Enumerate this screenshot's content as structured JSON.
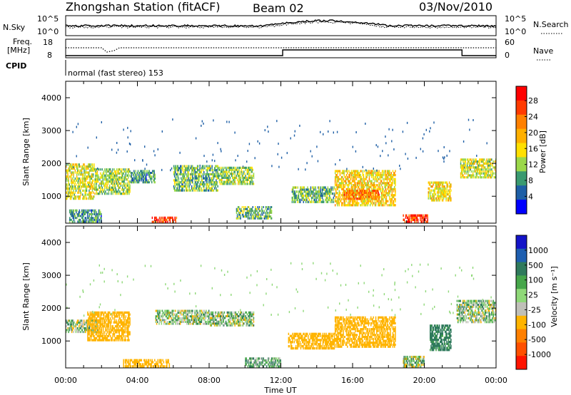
{
  "header": {
    "station": "Zhongshan Station (fitACF)",
    "beam": "Beam 02",
    "date": "03/Nov/2010"
  },
  "top_panels": {
    "nsky": {
      "label": "N.Sky",
      "yticks_left": [
        "10^5",
        "10^0"
      ],
      "yticks_right": [
        "10^5",
        "10^0"
      ],
      "right_label": "N.Search"
    },
    "freq": {
      "label_line1": "Freq.",
      "label_line2": "[MHz]",
      "yticks_left": [
        "18",
        "8"
      ],
      "yticks_right": [
        "60",
        "0"
      ],
      "right_label": "Nave"
    },
    "cpid": {
      "label": "CPID",
      "value_text": "normal (fast stereo) 153"
    }
  },
  "colorbars": {
    "power": {
      "label": "Power [dB]",
      "ticks": [
        "28",
        "24",
        "20",
        "16",
        "12",
        "8",
        "4"
      ],
      "colors": [
        "#ff0000",
        "#ff3a00",
        "#ff8000",
        "#ffb000",
        "#ffe000",
        "#9bd84a",
        "#3a9a70",
        "#1e5fa6",
        "#0000ff"
      ]
    },
    "velocity": {
      "label": "Velocity [m s⁻¹]",
      "ticks": [
        "1000",
        "500",
        "100",
        "25",
        "-25",
        "-100",
        "-500",
        "-1000"
      ],
      "colors": [
        "#1414c8",
        "#1e5fb0",
        "#2f7a5c",
        "#46a64a",
        "#8fd878",
        "#c0c0b8",
        "#ffb400",
        "#ff8000",
        "#ff5000",
        "#ff1400"
      ]
    }
  },
  "axes": {
    "ylabel": "Slant Range [km]",
    "xlabel": "Time UT",
    "y_ticks": [
      "4000",
      "3000",
      "2000",
      "1000"
    ],
    "x_ticks": [
      "00:00",
      "04:00",
      "08:00",
      "12:00",
      "16:00",
      "20:00",
      "00:00"
    ]
  },
  "chart_data": [
    {
      "type": "heatmap",
      "title": "Power",
      "ylabel": "Slant Range [km]",
      "xlabel": "Time UT",
      "xlim": [
        "00:00",
        "24:00"
      ],
      "ylim": [
        180,
        4500
      ],
      "value_range": [
        0,
        30
      ],
      "units": "dB",
      "regions": [
        {
          "t0": 0.0,
          "t1": 1.6,
          "r0": 900,
          "r1": 2000,
          "val": 14
        },
        {
          "t0": 1.6,
          "t1": 3.6,
          "r0": 1050,
          "r1": 1850,
          "val": 12
        },
        {
          "t0": 3.6,
          "t1": 5.0,
          "r0": 1400,
          "r1": 1800,
          "val": 8
        },
        {
          "t0": 0.2,
          "t1": 2.0,
          "r0": 200,
          "r1": 600,
          "val": 8
        },
        {
          "t0": 4.8,
          "t1": 6.2,
          "r0": 190,
          "r1": 380,
          "val": 26
        },
        {
          "t0": 6.0,
          "t1": 8.5,
          "r0": 1150,
          "r1": 1950,
          "val": 10
        },
        {
          "t0": 8.5,
          "t1": 10.5,
          "r0": 1350,
          "r1": 1900,
          "val": 12
        },
        {
          "t0": 9.5,
          "t1": 11.5,
          "r0": 300,
          "r1": 700,
          "val": 10
        },
        {
          "t0": 12.6,
          "t1": 15.0,
          "r0": 800,
          "r1": 1300,
          "val": 10
        },
        {
          "t0": 15.0,
          "t1": 18.4,
          "r0": 700,
          "r1": 1800,
          "val": 16
        },
        {
          "t0": 15.5,
          "t1": 17.5,
          "r0": 900,
          "r1": 1200,
          "val": 22
        },
        {
          "t0": 18.8,
          "t1": 20.2,
          "r0": 190,
          "r1": 450,
          "val": 26
        },
        {
          "t0": 20.2,
          "t1": 21.5,
          "r0": 850,
          "r1": 1450,
          "val": 16
        },
        {
          "t0": 22.0,
          "t1": 24.0,
          "r0": 1550,
          "r1": 2150,
          "val": 14
        }
      ]
    },
    {
      "type": "heatmap",
      "title": "Velocity",
      "ylabel": "Slant Range [km]",
      "xlabel": "Time UT",
      "xlim": [
        "00:00",
        "24:00"
      ],
      "ylim": [
        180,
        4500
      ],
      "value_range": [
        -1000,
        1000
      ],
      "units": "m s^-1",
      "regions": [
        {
          "t0": 0.0,
          "t1": 1.8,
          "r0": 1250,
          "r1": 1650,
          "val": 0
        },
        {
          "t0": 1.2,
          "t1": 3.6,
          "r0": 1000,
          "r1": 1900,
          "val": -300
        },
        {
          "t0": 3.2,
          "t1": 5.8,
          "r0": 200,
          "r1": 450,
          "val": -300
        },
        {
          "t0": 5.0,
          "t1": 8.0,
          "r0": 1500,
          "r1": 1950,
          "val": 0
        },
        {
          "t0": 8.0,
          "t1": 10.5,
          "r0": 1450,
          "r1": 1900,
          "val": 0
        },
        {
          "t0": 10.0,
          "t1": 12.0,
          "r0": 200,
          "r1": 500,
          "val": 60
        },
        {
          "t0": 12.4,
          "t1": 15.0,
          "r0": 750,
          "r1": 1250,
          "val": -300
        },
        {
          "t0": 15.0,
          "t1": 18.4,
          "r0": 800,
          "r1": 1750,
          "val": -300
        },
        {
          "t0": 18.8,
          "t1": 20.0,
          "r0": 190,
          "r1": 550,
          "val": 0
        },
        {
          "t0": 20.3,
          "t1": 21.5,
          "r0": 700,
          "r1": 1500,
          "val": 200
        },
        {
          "t0": 21.8,
          "t1": 24.0,
          "r0": 1550,
          "r1": 2250,
          "val": 0
        }
      ]
    }
  ]
}
